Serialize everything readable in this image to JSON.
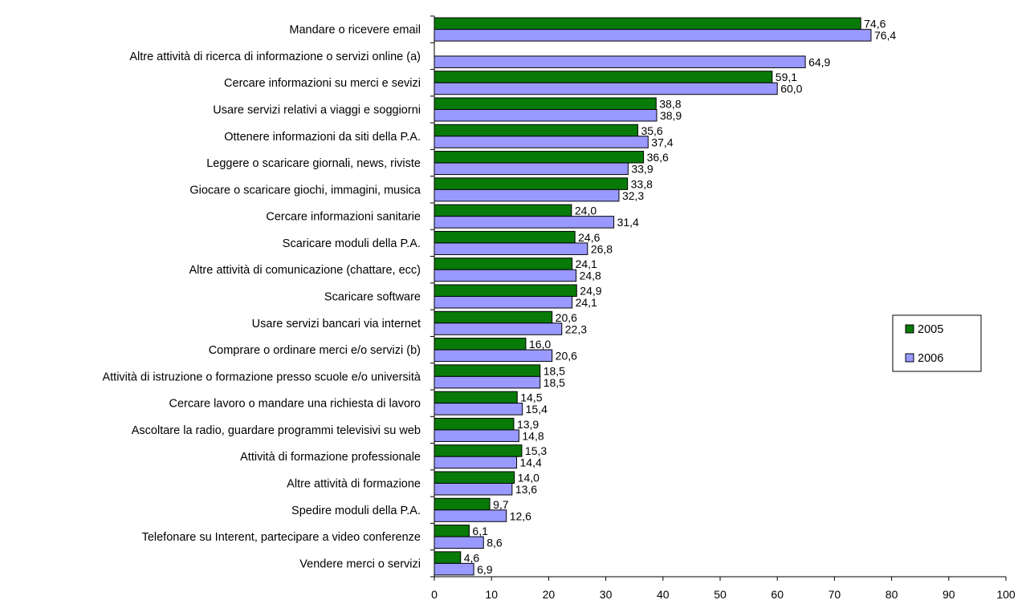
{
  "chart_data": {
    "type": "bar",
    "orientation": "horizontal",
    "categories": [
      "Mandare o ricevere email",
      "Altre attività di ricerca di informazione o servizi online (a)",
      "Cercare informazioni su merci e sevizi",
      "Usare servizi relativi a viaggi e soggiorni",
      "Ottenere informazioni da siti della P.A.",
      "Leggere o scaricare giornali, news, riviste",
      "Giocare o scaricare giochi, immagini, musica",
      "Cercare informazioni sanitarie",
      "Scaricare moduli della P.A.",
      "Altre attività di comunicazione (chattare, ecc)",
      "Scaricare software",
      "Usare servizi bancari via internet",
      "Comprare o ordinare merci e/o servizi (b)",
      "Attività di istruzione o formazione presso scuole e/o università",
      "Cercare lavoro o mandare una richiesta di lavoro",
      "Ascoltare la radio, guardare programmi televisivi su web",
      "Attività di formazione professionale",
      "Altre attività di formazione",
      "Spedire moduli della P.A.",
      "Telefonare su Interent, partecipare a video conferenze",
      "Vendere merci o servizi"
    ],
    "series": [
      {
        "name": "2005",
        "color": "#087a08",
        "values": [
          74.6,
          null,
          59.1,
          38.8,
          35.6,
          36.6,
          33.8,
          24.0,
          24.6,
          24.1,
          24.9,
          20.6,
          16.0,
          18.5,
          14.5,
          13.9,
          15.3,
          14.0,
          9.7,
          6.1,
          4.6
        ],
        "labels": [
          "74,6",
          "",
          "59,1",
          "38,8",
          "35,6",
          "36,6",
          "33,8",
          "24,0",
          "24,6",
          "24,1",
          "24,9",
          "20,6",
          "16,0",
          "18,5",
          "14,5",
          "13,9",
          "15,3",
          "14,0",
          "9,7",
          "6,1",
          "4,6"
        ]
      },
      {
        "name": "2006",
        "color": "#9999ff",
        "values": [
          76.4,
          64.9,
          60.0,
          38.9,
          37.4,
          33.9,
          32.3,
          31.4,
          26.8,
          24.8,
          24.1,
          22.3,
          20.6,
          18.5,
          15.4,
          14.8,
          14.4,
          13.6,
          12.6,
          8.6,
          6.9
        ],
        "labels": [
          "76,4",
          "64,9",
          "60,0",
          "38,9",
          "37,4",
          "33,9",
          "32,3",
          "31,4",
          "26,8",
          "24,8",
          "24,1",
          "22,3",
          "20,6",
          "18,5",
          "15,4",
          "14,8",
          "14,4",
          "13,6",
          "12,6",
          "8,6",
          "6,9"
        ]
      }
    ],
    "xlim": [
      0,
      100
    ],
    "xticks": [
      "0",
      "10",
      "20",
      "30",
      "40",
      "50",
      "60",
      "70",
      "80",
      "90",
      "100"
    ],
    "grid": false,
    "legend_position": "right"
  }
}
